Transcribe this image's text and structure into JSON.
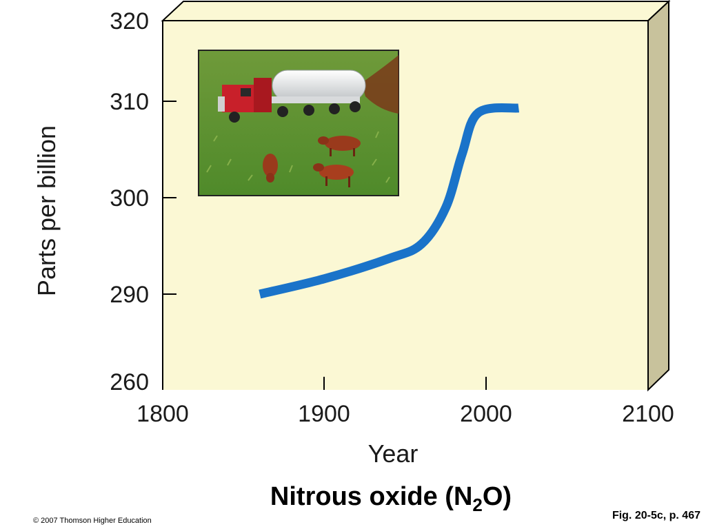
{
  "chart_data": {
    "type": "line",
    "title_main": "Nitrous oxide (N",
    "title_sub": "2",
    "title_end": "O)",
    "xlabel": "Year",
    "ylabel": "Parts per billion",
    "x_ticks": [
      "1800",
      "1900",
      "2000",
      "2100"
    ],
    "y_ticks": [
      "260",
      "290",
      "300",
      "310",
      "320"
    ],
    "xlim": [
      1800,
      2100
    ],
    "series": [
      {
        "color": "#1a73c9",
        "points": [
          {
            "x": 1860,
            "y": 290.0
          },
          {
            "x": 1900,
            "y": 291.6
          },
          {
            "x": 1940,
            "y": 293.7
          },
          {
            "x": 1960,
            "y": 295.2
          },
          {
            "x": 1975,
            "y": 299.0
          },
          {
            "x": 1985,
            "y": 304.5
          },
          {
            "x": 1995,
            "y": 308.8
          },
          {
            "x": 2020,
            "y": 309.3
          }
        ]
      }
    ],
    "plot_background": "#fbf8d4",
    "side_color": "#c8c29c"
  },
  "figure_photo": {
    "icon": "farm-truck-cows-photo"
  },
  "footer": {
    "copyright": "© 2007 Thomson Higher Education",
    "figure_ref": "Fig. 20-5c, p. 467"
  }
}
